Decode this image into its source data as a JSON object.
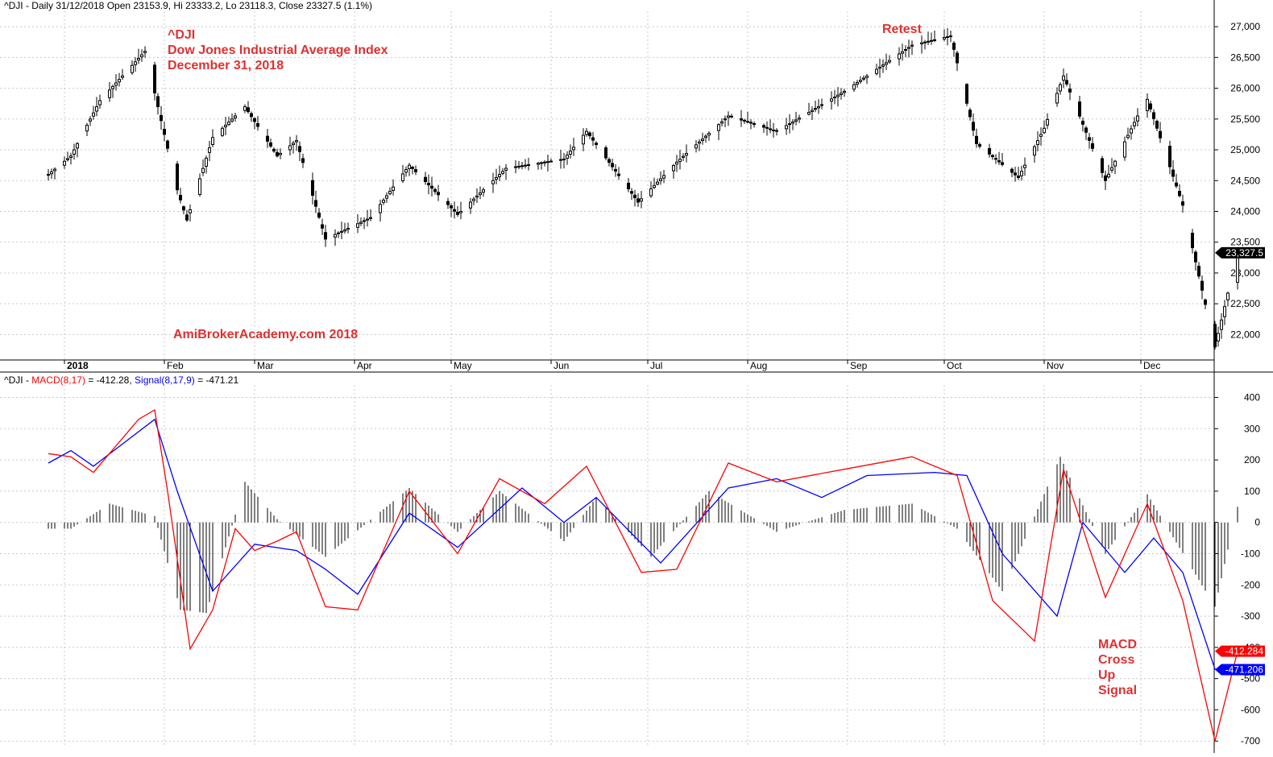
{
  "header_top": "^DJI - Daily 31/12/2018 Open 23153.9, Hi 23333.2, Lo 23118.3, Close 23327.5 (1.1%)",
  "header_bottom": {
    "prefix": "^DJI - ",
    "macd_label": "MACD(8,17)",
    "macd_value": " = -412.28, ",
    "signal_label": "Signal(8,17,9)",
    "signal_value": " = -471.21"
  },
  "annotations": {
    "ticker": "^DJI",
    "index_name": "Dow Jones Industrial Average Index",
    "date": "December 31, 2018",
    "watermark": "AmiBrokerAcademy.com  2018",
    "retest": "Retest",
    "macd_note": [
      "MACD",
      "Cross",
      "Up",
      "Signal"
    ]
  },
  "colors": {
    "candle": "#000000",
    "macd": "#ff0000",
    "signal": "#0000ff",
    "histogram": "#000000",
    "annotation": "#e03030",
    "grid": "#c8c8c8"
  },
  "chart_data": [
    {
      "type": "candlestick",
      "title": "^DJI",
      "y_ticks": [
        22000,
        22500,
        23000,
        23500,
        24000,
        24500,
        25000,
        25500,
        26000,
        26500,
        27000
      ],
      "y_tick_labels": [
        "22,000",
        "22,500",
        "23,000",
        "23,500",
        "24,000",
        "24,500",
        "25,000",
        "25,500",
        "26,000",
        "26,500",
        "27,000"
      ],
      "ylim": [
        21600,
        27250
      ],
      "month_labels": [
        {
          "label": "2018",
          "month": 0,
          "bold": true
        },
        {
          "label": "Feb",
          "month": 1
        },
        {
          "label": "Mar",
          "month": 2
        },
        {
          "label": "Apr",
          "month": 3
        },
        {
          "label": "May",
          "month": 4
        },
        {
          "label": "Jun",
          "month": 5
        },
        {
          "label": "Jul",
          "month": 6
        },
        {
          "label": "Aug",
          "month": 7
        },
        {
          "label": "Sep",
          "month": 8
        },
        {
          "label": "Oct",
          "month": 9
        },
        {
          "label": "Nov",
          "month": 10
        },
        {
          "label": "Dec",
          "month": 11
        }
      ],
      "last_close_label": "23,327.5",
      "last_close": 23327.5,
      "close_path": [
        [
          "2017-12-27",
          24600
        ],
        [
          "2018-01-03",
          24900
        ],
        [
          "2018-01-12",
          25800
        ],
        [
          "2018-01-26",
          26600
        ],
        [
          "2018-02-05",
          24350
        ],
        [
          "2018-02-08",
          23860
        ],
        [
          "2018-02-16",
          25200
        ],
        [
          "2018-02-26",
          25700
        ],
        [
          "2018-03-08",
          24900
        ],
        [
          "2018-03-14",
          25150
        ],
        [
          "2018-03-23",
          23550
        ],
        [
          "2018-04-06",
          23900
        ],
        [
          "2018-04-18",
          24750
        ],
        [
          "2018-05-03",
          23950
        ],
        [
          "2018-05-18",
          24700
        ],
        [
          "2018-06-05",
          24850
        ],
        [
          "2018-06-12",
          25300
        ],
        [
          "2018-06-28",
          24150
        ],
        [
          "2018-07-10",
          24800
        ],
        [
          "2018-07-26",
          25550
        ],
        [
          "2018-08-10",
          25300
        ],
        [
          "2018-08-31",
          25950
        ],
        [
          "2018-09-21",
          26700
        ],
        [
          "2018-10-03",
          26850
        ],
        [
          "2018-10-11",
          25100
        ],
        [
          "2018-10-24",
          24550
        ],
        [
          "2018-11-01",
          25350
        ],
        [
          "2018-11-07",
          26200
        ],
        [
          "2018-11-20",
          24500
        ],
        [
          "2018-11-30",
          25550
        ],
        [
          "2018-12-03",
          25820
        ],
        [
          "2018-12-14",
          24100
        ],
        [
          "2018-12-24",
          21800
        ],
        [
          "2018-12-31",
          23327.5
        ]
      ]
    },
    {
      "type": "line",
      "title": "MACD(8,17) / Signal(8,17,9)",
      "y_ticks": [
        -700,
        -600,
        -500,
        -400,
        -300,
        -200,
        -100,
        0,
        100,
        200,
        300,
        400
      ],
      "ylim": [
        -720,
        440
      ],
      "series": [
        {
          "name": "MACD(8,17)",
          "last_label": "-412.284",
          "points": [
            [
              "2017-12-27",
              220
            ],
            [
              "2018-01-03",
              210
            ],
            [
              "2018-01-10",
              160
            ],
            [
              "2018-01-24",
              330
            ],
            [
              "2018-01-29",
              360
            ],
            [
              "2018-02-02",
              100
            ],
            [
              "2018-02-09",
              -405
            ],
            [
              "2018-02-16",
              -280
            ],
            [
              "2018-02-23",
              -20
            ],
            [
              "2018-03-01",
              -90
            ],
            [
              "2018-03-08",
              -60
            ],
            [
              "2018-03-14",
              -30
            ],
            [
              "2018-03-23",
              -270
            ],
            [
              "2018-04-02",
              -280
            ],
            [
              "2018-04-18",
              100
            ],
            [
              "2018-05-03",
              -100
            ],
            [
              "2018-05-16",
              140
            ],
            [
              "2018-05-30",
              60
            ],
            [
              "2018-06-12",
              180
            ],
            [
              "2018-06-29",
              -160
            ],
            [
              "2018-07-10",
              -150
            ],
            [
              "2018-07-26",
              190
            ],
            [
              "2018-08-10",
              130
            ],
            [
              "2018-08-31",
              170
            ],
            [
              "2018-09-21",
              210
            ],
            [
              "2018-10-05",
              150
            ],
            [
              "2018-10-16",
              -250
            ],
            [
              "2018-10-29",
              -380
            ],
            [
              "2018-11-07",
              170
            ],
            [
              "2018-11-20",
              -240
            ],
            [
              "2018-12-03",
              60
            ],
            [
              "2018-12-14",
              -250
            ],
            [
              "2018-12-24",
              -700
            ],
            [
              "2018-12-31",
              -412.28
            ]
          ]
        },
        {
          "name": "Signal(8,17,9)",
          "last_label": "-471.206",
          "points": [
            [
              "2017-12-27",
              190
            ],
            [
              "2018-01-03",
              230
            ],
            [
              "2018-01-10",
              180
            ],
            [
              "2018-01-29",
              330
            ],
            [
              "2018-02-05",
              100
            ],
            [
              "2018-02-16",
              -220
            ],
            [
              "2018-03-01",
              -70
            ],
            [
              "2018-03-14",
              -90
            ],
            [
              "2018-03-23",
              -150
            ],
            [
              "2018-04-02",
              -230
            ],
            [
              "2018-04-18",
              30
            ],
            [
              "2018-05-03",
              -80
            ],
            [
              "2018-05-23",
              110
            ],
            [
              "2018-06-05",
              0
            ],
            [
              "2018-06-15",
              80
            ],
            [
              "2018-07-05",
              -130
            ],
            [
              "2018-07-26",
              110
            ],
            [
              "2018-08-10",
              140
            ],
            [
              "2018-08-24",
              80
            ],
            [
              "2018-09-07",
              150
            ],
            [
              "2018-09-28",
              160
            ],
            [
              "2018-10-08",
              150
            ],
            [
              "2018-10-19",
              -100
            ],
            [
              "2018-11-05",
              -300
            ],
            [
              "2018-11-13",
              0
            ],
            [
              "2018-11-26",
              -160
            ],
            [
              "2018-12-05",
              -50
            ],
            [
              "2018-12-14",
              -160
            ],
            [
              "2018-12-24",
              -470
            ],
            [
              "2018-12-31",
              -471.21
            ]
          ]
        },
        {
          "name": "Histogram",
          "type": "bar",
          "points": [
            [
              "2018-01-03",
              -20
            ],
            [
              "2018-01-15",
              60
            ],
            [
              "2018-01-29",
              20
            ],
            [
              "2018-02-06",
              -280
            ],
            [
              "2018-02-14",
              -290
            ],
            [
              "2018-02-26",
              130
            ],
            [
              "2018-03-08",
              10
            ],
            [
              "2018-03-23",
              -110
            ],
            [
              "2018-04-18",
              110
            ],
            [
              "2018-05-03",
              -30
            ],
            [
              "2018-05-16",
              100
            ],
            [
              "2018-06-05",
              -60
            ],
            [
              "2018-06-15",
              80
            ],
            [
              "2018-07-02",
              -110
            ],
            [
              "2018-07-20",
              100
            ],
            [
              "2018-08-10",
              -30
            ],
            [
              "2018-08-31",
              40
            ],
            [
              "2018-09-21",
              60
            ],
            [
              "2018-10-05",
              -20
            ],
            [
              "2018-10-19",
              -220
            ],
            [
              "2018-11-06",
              210
            ],
            [
              "2018-11-20",
              -100
            ],
            [
              "2018-12-03",
              90
            ],
            [
              "2018-12-24",
              -270
            ],
            [
              "2018-12-31",
              50
            ]
          ]
        }
      ]
    }
  ]
}
